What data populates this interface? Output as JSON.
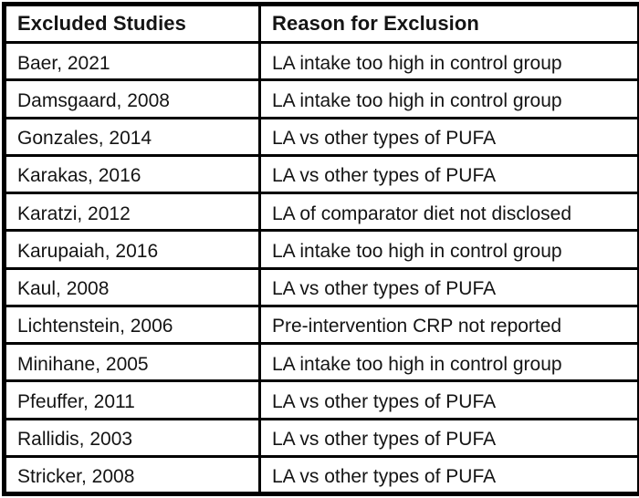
{
  "colors": {
    "border": "#000000",
    "background": "#ffffff",
    "text": "#141414"
  },
  "table": {
    "headers": {
      "study": "Excluded Studies",
      "reason": "Reason for Exclusion"
    },
    "rows": [
      {
        "study": "Baer, 2021",
        "reason": "LA intake too high in control group"
      },
      {
        "study": "Damsgaard, 2008",
        "reason": "LA intake too high in control group"
      },
      {
        "study": "Gonzales, 2014",
        "reason": "LA vs other types of PUFA"
      },
      {
        "study": "Karakas, 2016",
        "reason": "LA vs other types of PUFA"
      },
      {
        "study": "Karatzi, 2012",
        "reason": "LA of comparator diet not disclosed"
      },
      {
        "study": "Karupaiah, 2016",
        "reason": "LA intake too high in control group"
      },
      {
        "study": "Kaul, 2008",
        "reason": "LA vs other types of PUFA"
      },
      {
        "study": "Lichtenstein, 2006",
        "reason": "Pre-intervention CRP not reported"
      },
      {
        "study": "Minihane, 2005",
        "reason": "LA intake too high in control group"
      },
      {
        "study": "Pfeuffer, 2011",
        "reason": "LA vs other types of PUFA"
      },
      {
        "study": "Rallidis, 2003",
        "reason": "LA vs other types of PUFA"
      },
      {
        "study": "Stricker, 2008",
        "reason": "LA vs other types of PUFA"
      }
    ]
  }
}
